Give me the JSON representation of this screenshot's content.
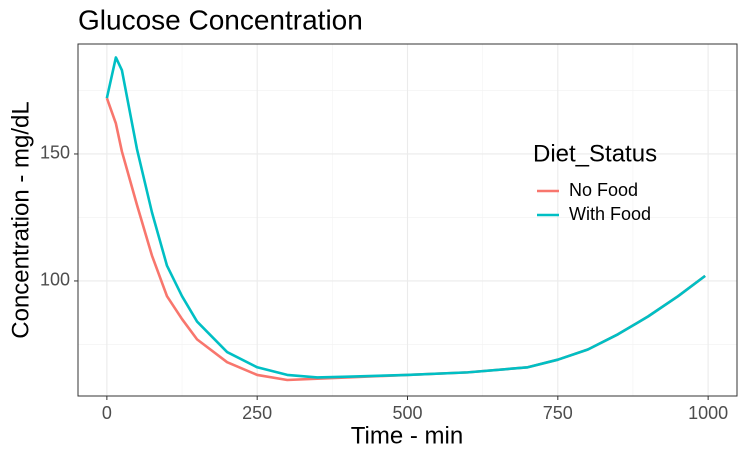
{
  "chart_data": {
    "type": "line",
    "title": "Glucose Concentration",
    "x_label": "Time - min",
    "y_label": "Concentration - mg/dL",
    "x": [
      0,
      15,
      25,
      50,
      75,
      100,
      125,
      150,
      200,
      250,
      300,
      350,
      400,
      500,
      600,
      700,
      750,
      800,
      850,
      900,
      950,
      995
    ],
    "series": [
      {
        "name": "No Food",
        "color": "#f8766d",
        "values": [
          172,
          162,
          151,
          130,
          110,
          94,
          85,
          77,
          68,
          63,
          61,
          61.5,
          62,
          63,
          64,
          66,
          69,
          73,
          79,
          86,
          94,
          102
        ]
      },
      {
        "name": "With Food",
        "color": "#00bfc4",
        "values": [
          172,
          188,
          183,
          152,
          127,
          106,
          94,
          84,
          72,
          66,
          63,
          62,
          62.3,
          63,
          64,
          66,
          69,
          73,
          79,
          86,
          94,
          102
        ]
      }
    ],
    "legend_title": "Diet_Status",
    "legend_position": "right",
    "xlim": [
      -48,
      1048
    ],
    "ylim": [
      54.7,
      193.3
    ],
    "xticks": [
      0,
      250,
      500,
      750,
      1000
    ],
    "yticks": [
      100,
      150
    ],
    "minor_xticks": [
      125,
      375,
      625,
      875
    ],
    "minor_yticks": [
      75,
      125,
      175
    ],
    "grid": true
  }
}
